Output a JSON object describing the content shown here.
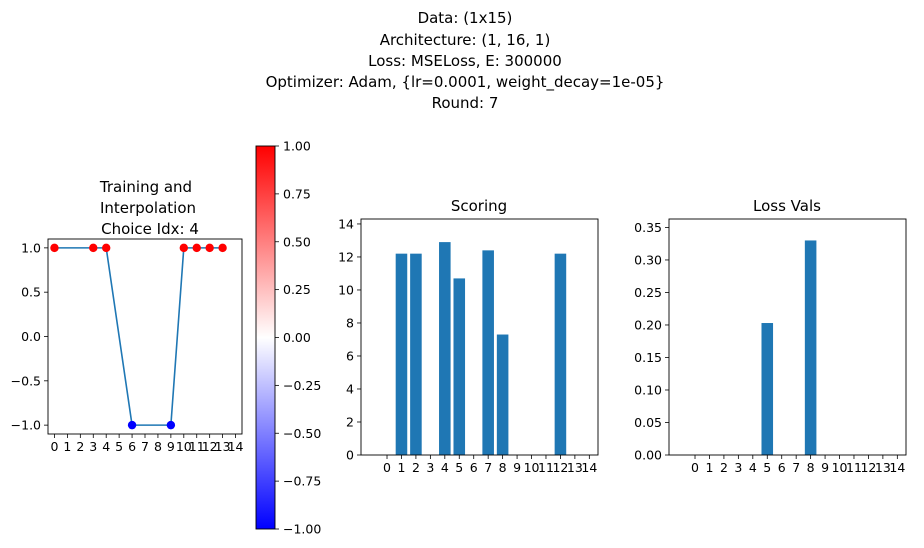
{
  "figure": {
    "title_lines": [
      "Data: (1x15)",
      "Architecture: (1, 16, 1)",
      "Loss: MSELoss, E: 300000",
      "Optimizer: Adam, {lr=0.0001, weight_decay=1e-05}",
      "Round: 7"
    ]
  },
  "chart_data": [
    {
      "type": "line",
      "title_lines": [
        "Training and",
        "Interpolation",
        "Choice Idx: 4"
      ],
      "xlim": [
        -0.5,
        14.5
      ],
      "ylim": [
        -1.1,
        1.1
      ],
      "xticks": [
        0,
        1,
        2,
        3,
        4,
        5,
        6,
        7,
        8,
        9,
        10,
        11,
        12,
        13,
        14
      ],
      "yticks": [
        -1.0,
        -0.5,
        0.0,
        0.5,
        1.0
      ],
      "ytick_labels": [
        "−1.0",
        "−0.5",
        "0.0",
        "0.5",
        "1.0"
      ],
      "line": {
        "color": "#1f77b4",
        "x": [
          0,
          3,
          4,
          6,
          9,
          10,
          11,
          12,
          13
        ],
        "y": [
          1,
          1,
          1,
          -1,
          -1,
          1,
          1,
          1,
          1
        ]
      },
      "points": {
        "x": [
          0,
          3,
          4,
          6,
          9,
          10,
          11,
          12,
          13
        ],
        "y": [
          1,
          1,
          1,
          -1,
          -1,
          1,
          1,
          1,
          1
        ],
        "colormap": "bwr"
      }
    },
    {
      "type": "colorbar",
      "colormap": "bwr",
      "range": [
        -1.0,
        1.0
      ],
      "ticks": [
        1.0,
        0.75,
        0.5,
        0.25,
        0.0,
        -0.25,
        -0.5,
        -0.75,
        -1.0
      ],
      "tick_labels": [
        "1.00",
        "0.75",
        "0.50",
        "0.25",
        "0.00",
        "−0.25",
        "−0.50",
        "−0.75",
        "−1.00"
      ]
    },
    {
      "type": "bar",
      "title": "Scoring",
      "color": "#1f77b4",
      "categories": [
        0,
        1,
        2,
        3,
        4,
        5,
        6,
        7,
        8,
        9,
        10,
        11,
        12,
        13,
        14
      ],
      "values": [
        0,
        12.2,
        12.2,
        0,
        12.9,
        10.7,
        0,
        12.4,
        7.3,
        0,
        0,
        0,
        12.2,
        0,
        0
      ],
      "ylim": [
        0,
        14.3
      ],
      "yticks": [
        0,
        2,
        4,
        6,
        8,
        10,
        12,
        14
      ],
      "ytick_labels": [
        "0",
        "2",
        "4",
        "6",
        "8",
        "10",
        "12",
        "14"
      ]
    },
    {
      "type": "bar",
      "title": "Loss Vals",
      "color": "#1f77b4",
      "categories": [
        0,
        1,
        2,
        3,
        4,
        5,
        6,
        7,
        8,
        9,
        10,
        11,
        12,
        13,
        14
      ],
      "values": [
        0,
        0,
        0,
        0,
        0,
        0.203,
        0,
        0,
        0.33,
        0,
        0,
        0,
        0,
        0,
        0
      ],
      "ylim": [
        0,
        0.363
      ],
      "yticks": [
        0,
        0.05,
        0.1,
        0.15,
        0.2,
        0.25,
        0.3,
        0.35
      ],
      "ytick_labels": [
        "0.00",
        "0.05",
        "0.10",
        "0.15",
        "0.20",
        "0.25",
        "0.30",
        "0.35"
      ]
    }
  ]
}
